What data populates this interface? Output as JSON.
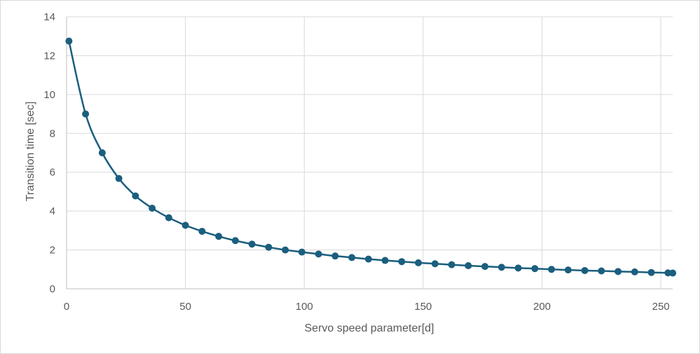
{
  "chart_data": {
    "type": "scatter",
    "title": "",
    "xlabel": "Servo speed parameter[d]",
    "ylabel": "Transition time [sec]",
    "xlim": [
      0,
      255
    ],
    "ylim": [
      0,
      14
    ],
    "x_ticks": [
      "0",
      "50",
      "100",
      "150",
      "200",
      "250"
    ],
    "y_ticks": [
      "0",
      "2",
      "4",
      "6",
      "8",
      "10",
      "12",
      "14"
    ],
    "grid": true,
    "legend": "none",
    "line_style": "smooth-line-with-markers",
    "color": "#1B5E7E",
    "series": [
      {
        "x": [
          1,
          8,
          15,
          22,
          29,
          36,
          43,
          50,
          57,
          64,
          71,
          78,
          85,
          92,
          99,
          106,
          113,
          120,
          127,
          134,
          141,
          148,
          155,
          162,
          169,
          176,
          183,
          190,
          197,
          204,
          211,
          218,
          225,
          232,
          239,
          246,
          253,
          255
        ],
        "y": [
          12.75,
          9.0,
          7.0,
          5.68,
          4.78,
          4.15,
          3.66,
          3.27,
          2.96,
          2.7,
          2.48,
          2.3,
          2.14,
          2.0,
          1.89,
          1.79,
          1.69,
          1.61,
          1.53,
          1.46,
          1.4,
          1.34,
          1.29,
          1.24,
          1.19,
          1.15,
          1.11,
          1.07,
          1.04,
          1.0,
          0.97,
          0.94,
          0.92,
          0.89,
          0.87,
          0.84,
          0.82,
          0.81
        ]
      }
    ]
  }
}
